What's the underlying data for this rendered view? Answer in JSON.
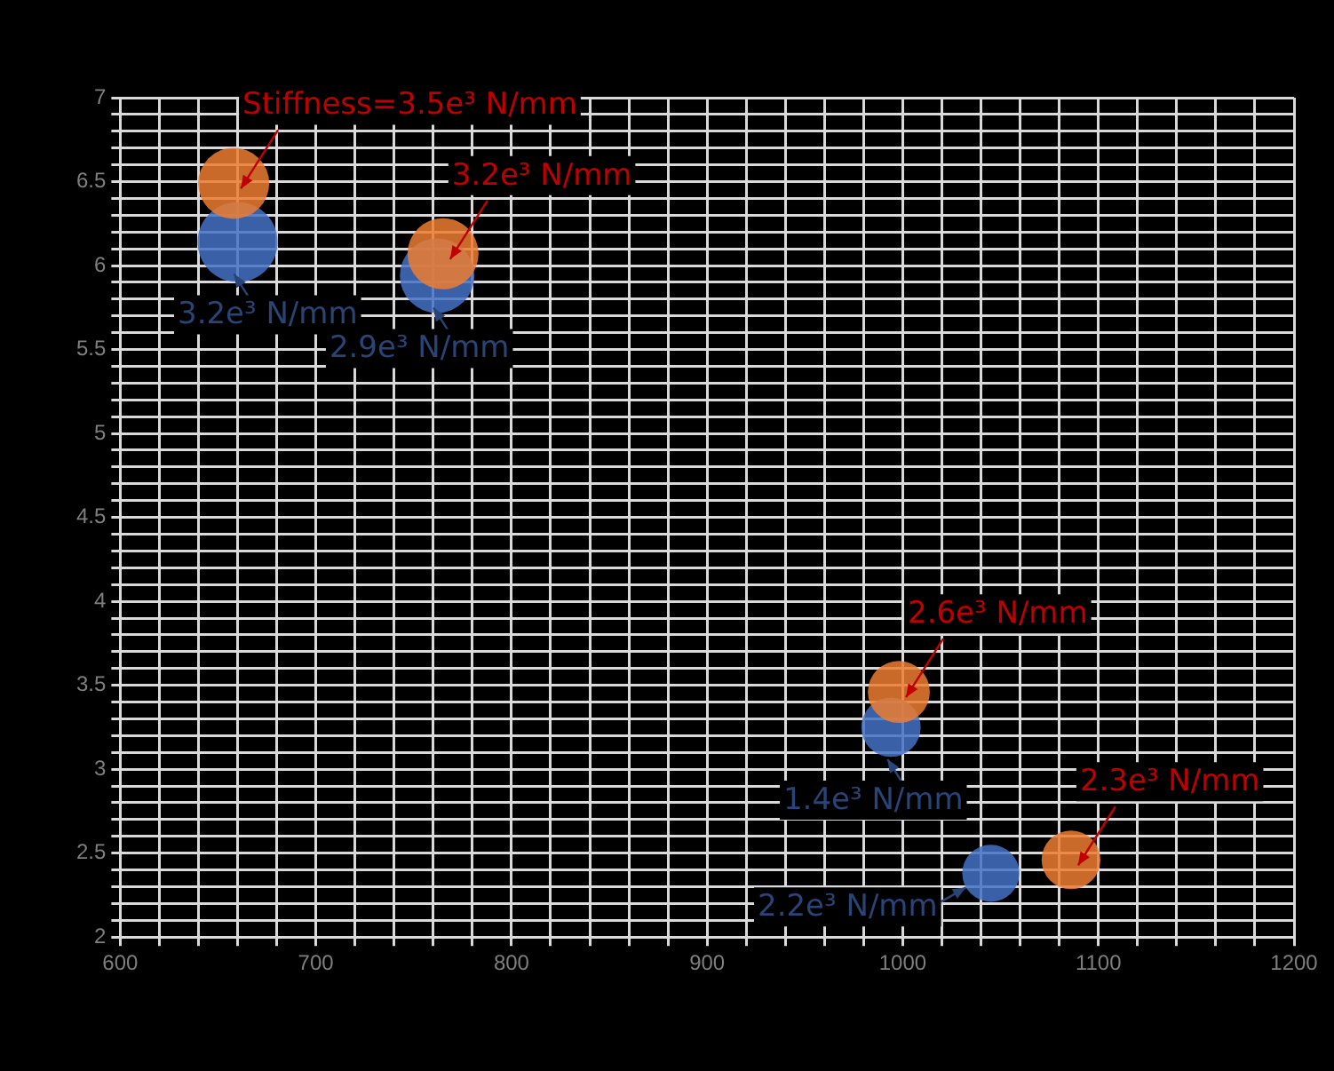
{
  "chart_data": {
    "type": "bubble",
    "xlim": [
      600,
      1200
    ],
    "ylim": [
      2,
      7
    ],
    "xticks": [
      600,
      {
        "value": 620,
        "label": null
      },
      {
        "value": 640,
        "label": null
      },
      {
        "value": 660,
        "label": null
      },
      {
        "value": 680,
        "label": null
      },
      700,
      {
        "value": 720,
        "label": null
      },
      {
        "value": 740,
        "label": null
      },
      {
        "value": 760,
        "label": null
      },
      {
        "value": 780,
        "label": null
      },
      800,
      {
        "value": 820,
        "label": null
      },
      {
        "value": 840,
        "label": null
      },
      {
        "value": 860,
        "label": null
      },
      {
        "value": 880,
        "label": null
      },
      900,
      {
        "value": 920,
        "label": null
      },
      {
        "value": 940,
        "label": null
      },
      {
        "value": 960,
        "label": null
      },
      {
        "value": 980,
        "label": null
      },
      1000,
      {
        "value": 1020,
        "label": null
      },
      {
        "value": 1040,
        "label": null
      },
      {
        "value": 1060,
        "label": null
      },
      {
        "value": 1080,
        "label": null
      },
      1100,
      {
        "value": 1120,
        "label": null
      },
      {
        "value": 1140,
        "label": null
      },
      {
        "value": 1160,
        "label": null
      },
      {
        "value": 1180,
        "label": null
      },
      1200
    ],
    "yticks": [
      2,
      {
        "value": 2.1,
        "label": null
      },
      {
        "value": 2.2,
        "label": null
      },
      {
        "value": 2.3,
        "label": null
      },
      {
        "value": 2.4,
        "label": null
      },
      2.5,
      {
        "value": 2.6,
        "label": null
      },
      {
        "value": 2.7,
        "label": null
      },
      {
        "value": 2.8,
        "label": null
      },
      {
        "value": 2.9,
        "label": null
      },
      3,
      {
        "value": 3.1,
        "label": null
      },
      {
        "value": 3.2,
        "label": null
      },
      {
        "value": 3.3,
        "label": null
      },
      {
        "value": 3.4,
        "label": null
      },
      3.5,
      {
        "value": 3.6,
        "label": null
      },
      {
        "value": 3.7,
        "label": null
      },
      {
        "value": 3.8,
        "label": null
      },
      {
        "value": 3.9,
        "label": null
      },
      4,
      {
        "value": 4.1,
        "label": null
      },
      {
        "value": 4.2,
        "label": null
      },
      {
        "value": 4.3,
        "label": null
      },
      {
        "value": 4.4,
        "label": null
      },
      4.5,
      {
        "value": 4.6,
        "label": null
      },
      {
        "value": 4.7,
        "label": null
      },
      {
        "value": 4.8,
        "label": null
      },
      {
        "value": 4.9,
        "label": null
      },
      5,
      {
        "value": 5.1,
        "label": null
      },
      {
        "value": 5.2,
        "label": null
      },
      {
        "value": 5.3,
        "label": null
      },
      {
        "value": 5.4,
        "label": null
      },
      5.5,
      {
        "value": 5.6,
        "label": null
      },
      {
        "value": 5.7,
        "label": null
      },
      {
        "value": 5.8,
        "label": null
      },
      {
        "value": 5.9,
        "label": null
      },
      6,
      {
        "value": 6.1,
        "label": null
      },
      {
        "value": 6.2,
        "label": null
      },
      {
        "value": 6.3,
        "label": null
      },
      {
        "value": 6.4,
        "label": null
      },
      6.5,
      {
        "value": 6.6,
        "label": null
      },
      {
        "value": 6.7,
        "label": null
      },
      {
        "value": 6.8,
        "label": null
      },
      {
        "value": 6.9,
        "label": null
      },
      7
    ],
    "grid": true,
    "series": [
      {
        "color": "#4472c4",
        "x": [
          660,
          762,
          994,
          1045
        ],
        "values": [
          6.14,
          5.94,
          3.25,
          2.38
        ],
        "sizes": [
          1,
          0.87,
          0.55,
          0.51
        ]
      },
      {
        "color": "#ed7d31",
        "x": [
          658,
          765,
          998,
          1086
        ],
        "values": [
          6.49,
          6.07,
          3.46,
          2.46
        ],
        "sizes": [
          0.79,
          0.79,
          0.6,
          0.54
        ]
      }
    ],
    "annotations": [
      {
        "text": "3.2e³ N/mm",
        "x": 660,
        "y": 6.14
      },
      {
        "text": "2.9e³ N/mm",
        "x": 762,
        "y": 5.94
      },
      {
        "text": "1.4e³ N/mm",
        "x": 994,
        "y": 3.25
      },
      {
        "text": "2.2e³ N/mm",
        "x": 1045,
        "y": 2.38
      },
      {
        "text": "Stiffness=3.5e³ N/mm",
        "x": 658,
        "y": 6.49
      },
      {
        "text": "3.2e³ N/mm",
        "x": 765,
        "y": 6.07
      },
      {
        "text": "2.6e³ N/mm",
        "x": 998,
        "y": 3.46
      },
      {
        "text": "2.3e³ N/mm",
        "x": 1086,
        "y": 2.46
      }
    ]
  }
}
